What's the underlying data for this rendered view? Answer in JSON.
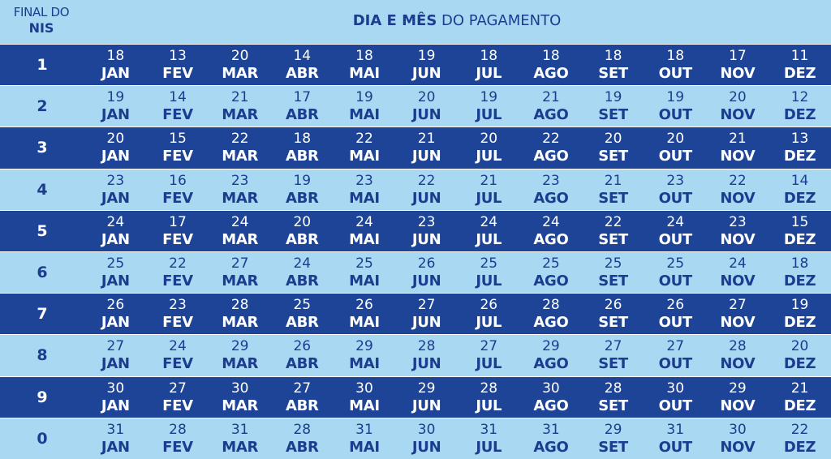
{
  "header": {
    "final_line1": "FINAL DO",
    "final_line2": "NIS",
    "title_bold": "DIA E MÊS",
    "title_rest": " DO PAGAMENTO"
  },
  "months": [
    "JAN",
    "FEV",
    "MAR",
    "ABR",
    "MAI",
    "JUN",
    "JUL",
    "AGO",
    "SET",
    "OUT",
    "NOV",
    "DEZ"
  ],
  "rows": [
    {
      "nis": "1",
      "days": [
        "18",
        "13",
        "20",
        "14",
        "18",
        "19",
        "18",
        "18",
        "18",
        "18",
        "17",
        "11"
      ]
    },
    {
      "nis": "2",
      "days": [
        "19",
        "14",
        "21",
        "17",
        "19",
        "20",
        "19",
        "21",
        "19",
        "19",
        "20",
        "12"
      ]
    },
    {
      "nis": "3",
      "days": [
        "20",
        "15",
        "22",
        "18",
        "22",
        "21",
        "20",
        "22",
        "20",
        "20",
        "21",
        "13"
      ]
    },
    {
      "nis": "4",
      "days": [
        "23",
        "16",
        "23",
        "19",
        "23",
        "22",
        "21",
        "23",
        "21",
        "23",
        "22",
        "14"
      ]
    },
    {
      "nis": "5",
      "days": [
        "24",
        "17",
        "24",
        "20",
        "24",
        "23",
        "24",
        "24",
        "22",
        "24",
        "23",
        "15"
      ]
    },
    {
      "nis": "6",
      "days": [
        "25",
        "22",
        "27",
        "24",
        "25",
        "26",
        "25",
        "25",
        "25",
        "25",
        "24",
        "18"
      ]
    },
    {
      "nis": "7",
      "days": [
        "26",
        "23",
        "28",
        "25",
        "26",
        "27",
        "26",
        "28",
        "26",
        "26",
        "27",
        "19"
      ]
    },
    {
      "nis": "8",
      "days": [
        "27",
        "24",
        "29",
        "26",
        "29",
        "28",
        "27",
        "29",
        "27",
        "27",
        "28",
        "20"
      ]
    },
    {
      "nis": "9",
      "days": [
        "30",
        "27",
        "30",
        "27",
        "30",
        "29",
        "28",
        "30",
        "28",
        "30",
        "29",
        "21"
      ]
    },
    {
      "nis": "0",
      "days": [
        "31",
        "28",
        "31",
        "28",
        "31",
        "30",
        "31",
        "31",
        "29",
        "31",
        "30",
        "22"
      ]
    }
  ],
  "colors": {
    "dark_row": "#1d4496",
    "light_row": "#a9d8f2",
    "text_dark": "#1c3d8f",
    "text_light": "#ffffff"
  }
}
